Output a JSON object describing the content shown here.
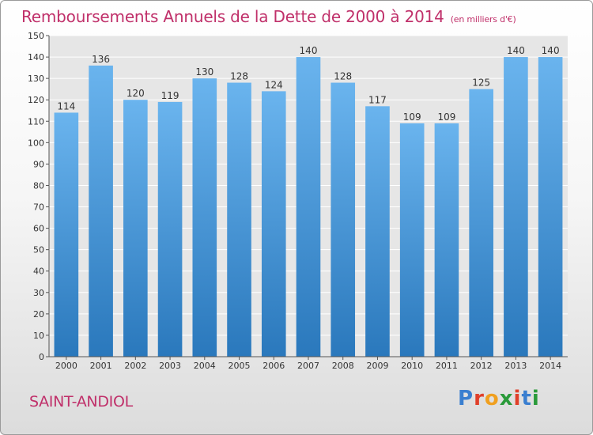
{
  "header": {
    "title": "Remboursements Annuels de la Dette de 2000 à 2014",
    "subtitle": "(en milliers d'€)"
  },
  "footer": {
    "city": "SAINT-ANDIOL",
    "logo_text": "Proxiti",
    "logo_colors": [
      "#3a7fd0",
      "#e0402a",
      "#f0a020",
      "#2a9a3a",
      "#e0402a",
      "#3a7fd0",
      "#2a9a3a"
    ]
  },
  "chart_data": {
    "type": "bar",
    "title": "Remboursements Annuels de la Dette de 2000 à 2014",
    "xlabel": "",
    "ylabel": "",
    "categories": [
      "2000",
      "2001",
      "2002",
      "2003",
      "2004",
      "2005",
      "2006",
      "2007",
      "2008",
      "2009",
      "2010",
      "2011",
      "2012",
      "2013",
      "2014"
    ],
    "values": [
      114,
      136,
      120,
      119,
      130,
      128,
      124,
      140,
      128,
      117,
      109,
      109,
      125,
      140,
      140
    ],
    "ylim": [
      0,
      150
    ],
    "ytick_step": 10,
    "grid": true,
    "bar_color_top": "#6ab4ee",
    "bar_color_bottom": "#2a78bc"
  }
}
